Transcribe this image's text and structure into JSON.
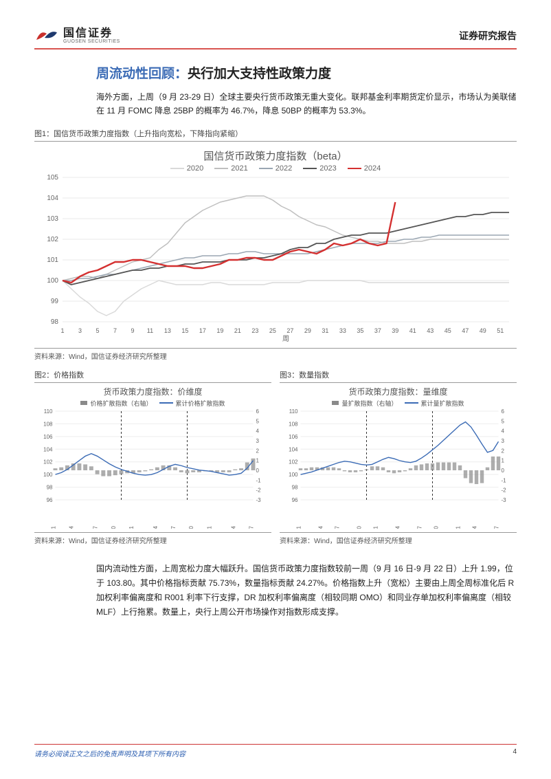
{
  "header": {
    "logo_cn": "国信证券",
    "logo_en": "GUOSEN SECURITIES",
    "right": "证券研究报告"
  },
  "title": {
    "blue": "周流动性回顾：",
    "black": "央行加大支持性政策力度"
  },
  "intro": "海外方面，上周（9 月 23-29 日）全球主要央行货币政策无重大变化。联邦基金利率期货定价显示，市场认为美联储在 11 月 FOMC 降息 25BP 的概率为 46.7%，降息 50BP 的概率为 53.3%。",
  "fig1": {
    "label": "图1：国信货币政策力度指数（上升指向宽松，下降指向紧缩）",
    "title": "国信货币政策力度指数（beta）",
    "xlabel": "周",
    "x_ticks": [
      1,
      3,
      5,
      7,
      9,
      11,
      13,
      15,
      17,
      19,
      21,
      23,
      25,
      27,
      29,
      31,
      33,
      35,
      37,
      39,
      41,
      43,
      45,
      47,
      49,
      51
    ],
    "ylim": [
      98,
      105
    ],
    "y_ticks": [
      98,
      99,
      100,
      101,
      102,
      103,
      104,
      105
    ],
    "grid_color": "#e8e8e8",
    "bg": "#ffffff",
    "axis_fontsize": 10,
    "series": {
      "2020": {
        "color": "#d9d9d9",
        "width": 1.5,
        "data": [
          100,
          99.6,
          99.2,
          98.9,
          98.5,
          98.3,
          98.5,
          99,
          99.3,
          99.6,
          99.8,
          100,
          99.9,
          99.8,
          99.8,
          99.8,
          99.8,
          99.9,
          99.9,
          99.8,
          99.8,
          99.8,
          99.8,
          99.8,
          99.9,
          99.9,
          99.9,
          99.9,
          100,
          100,
          100,
          100,
          100,
          100,
          100,
          99.9,
          99.9,
          99.9,
          99.9,
          99.9,
          99.9,
          99.9,
          99.9,
          99.9,
          99.9,
          99.9,
          99.9,
          99.9,
          99.9,
          99.9,
          99.9,
          99.9
        ]
      },
      "2021": {
        "color": "#bfbfbf",
        "width": 1.5,
        "data": [
          100,
          100.1,
          100.2,
          100.2,
          100.1,
          100.3,
          100.5,
          100.7,
          100.9,
          101,
          101.1,
          101.5,
          101.8,
          102.3,
          102.8,
          103.1,
          103.4,
          103.6,
          103.8,
          103.9,
          104,
          104.1,
          104.1,
          104.1,
          103.9,
          103.6,
          103.4,
          103.1,
          102.9,
          102.7,
          102.6,
          102.4,
          102.2,
          102.1,
          102,
          101.9,
          101.9,
          101.8,
          101.8,
          101.8,
          101.9,
          101.9,
          102,
          102,
          102,
          102,
          102,
          102,
          102,
          102,
          102,
          102
        ]
      },
      "2022": {
        "color": "#9aa6b2",
        "width": 1.5,
        "data": [
          100,
          100,
          100.1,
          100.1,
          100.2,
          100.3,
          100.3,
          100.4,
          100.5,
          100.6,
          100.7,
          100.8,
          100.9,
          101,
          101.1,
          101.1,
          101.2,
          101.2,
          101.2,
          101.3,
          101.3,
          101.4,
          101.4,
          101.3,
          101.3,
          101.3,
          101.3,
          101.3,
          101.3,
          101.4,
          101.5,
          101.6,
          101.7,
          101.8,
          101.8,
          101.8,
          101.8,
          101.9,
          101.9,
          102,
          102,
          102.1,
          102.1,
          102.2,
          102.2,
          102.2,
          102.2,
          102.2,
          102.2,
          102.2,
          102.2,
          102.2
        ]
      },
      "2023": {
        "color": "#555555",
        "width": 1.8,
        "data": [
          100,
          99.8,
          99.9,
          100,
          100.1,
          100.2,
          100.3,
          100.4,
          100.5,
          100.5,
          100.6,
          100.6,
          100.7,
          100.7,
          100.8,
          100.8,
          100.9,
          100.9,
          100.9,
          101,
          101,
          101,
          101.1,
          101.1,
          101.2,
          101.3,
          101.5,
          101.6,
          101.6,
          101.8,
          101.8,
          102,
          102.1,
          102.2,
          102.2,
          102.3,
          102.3,
          102.3,
          102.4,
          102.5,
          102.6,
          102.7,
          102.8,
          102.9,
          103,
          103.1,
          103.1,
          103.2,
          103.2,
          103.3,
          103.3,
          103.3
        ]
      },
      "2024": {
        "color": "#d43030",
        "width": 2.4,
        "data": [
          100,
          99.9,
          100.2,
          100.4,
          100.5,
          100.7,
          100.9,
          100.9,
          101,
          101,
          100.9,
          100.8,
          100.7,
          100.7,
          100.7,
          100.6,
          100.6,
          100.7,
          100.8,
          101,
          101,
          101.1,
          101.1,
          101,
          101,
          101.2,
          101.4,
          101.5,
          101.4,
          101.3,
          101.5,
          101.8,
          101.7,
          101.8,
          102,
          101.8,
          101.7,
          101.8,
          103.8
        ]
      }
    },
    "legend": [
      "2020",
      "2021",
      "2022",
      "2023",
      "2024"
    ],
    "source": "资料来源：Wind，国信证券经济研究所整理"
  },
  "fig2": {
    "label": "图2：价格指数",
    "title": "货币政策力度指数：价维度",
    "legend_bar": "价格扩散指数（右轴）",
    "legend_line": "累计价格扩散指数",
    "ylim_left": [
      96,
      110
    ],
    "yticks_left": [
      96,
      98,
      100,
      102,
      104,
      106,
      108,
      110
    ],
    "ylim_right": [
      -3,
      6
    ],
    "yticks_right": [
      -3,
      -2,
      -1,
      0,
      1,
      2,
      3,
      4,
      5,
      6
    ],
    "x_labels": [
      "2022-01",
      "2022-04",
      "2022-07",
      "2022-10",
      "2023-01",
      "2023-04",
      "2023-07",
      "2023-10",
      "2024-01",
      "2024-04",
      "2024-07"
    ],
    "bar_color": "#8a8a8a",
    "line_color": "#3b6bb5",
    "grid_color": "#eeeeee",
    "divider_color": "#333333",
    "line_data": [
      100,
      100.3,
      100.8,
      101.5,
      102.2,
      102.9,
      103.3,
      102.9,
      102.3,
      101.7,
      101.2,
      100.8,
      100.5,
      100.2,
      100,
      99.9,
      100,
      100.3,
      100.8,
      101.3,
      101.6,
      101.4,
      101.1,
      100.9,
      100.7,
      100.6,
      100.5,
      100.3,
      100.1,
      99.9,
      100,
      100.2,
      101,
      102.2
    ],
    "bar_data": [
      0.2,
      0.3,
      0.5,
      0.7,
      0.7,
      0.6,
      0.4,
      -0.4,
      -0.6,
      -0.6,
      -0.5,
      -0.4,
      -0.3,
      -0.3,
      -0.2,
      -0.1,
      0.1,
      0.3,
      0.5,
      0.5,
      0.3,
      -0.2,
      -0.3,
      -0.2,
      -0.2,
      -0.1,
      -0.1,
      -0.2,
      -0.2,
      -0.2,
      0.1,
      0.2,
      0.8,
      1.2
    ],
    "source": "资料来源：Wind，国信证券经济研究所整理"
  },
  "fig3": {
    "label": "图3：数量指数",
    "title": "货币政策力度指数：量维度",
    "legend_bar": "量扩散指数（右轴）",
    "legend_line": "累计量扩散指数",
    "ylim_left": [
      96,
      110
    ],
    "yticks_left": [
      96,
      98,
      100,
      102,
      104,
      106,
      108,
      110
    ],
    "ylim_right": [
      -3,
      6
    ],
    "yticks_right": [
      -3,
      -2,
      -1,
      0,
      1,
      2,
      3,
      4,
      5,
      6
    ],
    "x_labels": [
      "2022-01",
      "2022-04",
      "2022-07",
      "2022-10",
      "2023-01",
      "2023-04",
      "2023-07",
      "2023-10",
      "2024-01",
      "2024-04",
      "2024-07"
    ],
    "bar_color": "#8a8a8a",
    "line_color": "#3b6bb5",
    "grid_color": "#eeeeee",
    "divider_color": "#333333",
    "line_data": [
      100,
      100.2,
      100.4,
      100.7,
      101,
      101.3,
      101.6,
      101.9,
      102.1,
      102,
      101.8,
      101.6,
      101.5,
      101.6,
      102,
      102.4,
      102.7,
      102.5,
      102.2,
      102,
      101.9,
      102.1,
      102.6,
      103.2,
      103.9,
      104.6,
      105.4,
      106.2,
      107,
      107.8,
      108.3,
      107.5,
      106.2,
      104.8,
      103.5,
      103.8,
      105.2
    ],
    "bar_data": [
      0.2,
      0.2,
      0.3,
      0.3,
      0.3,
      0.3,
      0.3,
      0.2,
      -0.1,
      -0.2,
      -0.2,
      -0.1,
      0.1,
      0.4,
      0.4,
      0.3,
      -0.2,
      -0.3,
      -0.2,
      -0.1,
      0.2,
      0.5,
      0.6,
      0.7,
      0.7,
      0.8,
      0.8,
      0.8,
      0.8,
      0.5,
      -0.8,
      -1.3,
      -1.4,
      -1.3,
      0.3,
      1.4,
      1.4
    ],
    "source": "资料来源：Wind，国信证券经济研究所整理"
  },
  "body": "国内流动性方面，上周宽松力度大幅跃升。国信货币政策力度指数较前一周（9 月 16 日-9 月 22 日）上升 1.99，位于 103.80。其中价格指标贡献 75.73%，数量指标贡献 24.27%。价格指数上升（宽松）主要由上周全周标准化后 R 加权利率偏离度和 R001 利率下行支撑，DR 加权利率偏离度（相较同期 OMO）和同业存单加权利率偏离度（相较 MLF）上行拖累。数量上，央行上周公开市场操作对指数形成支撑。",
  "footer": {
    "disclaimer": "请务必阅读正文之后的免责声明及其项下所有内容",
    "page": "4"
  }
}
